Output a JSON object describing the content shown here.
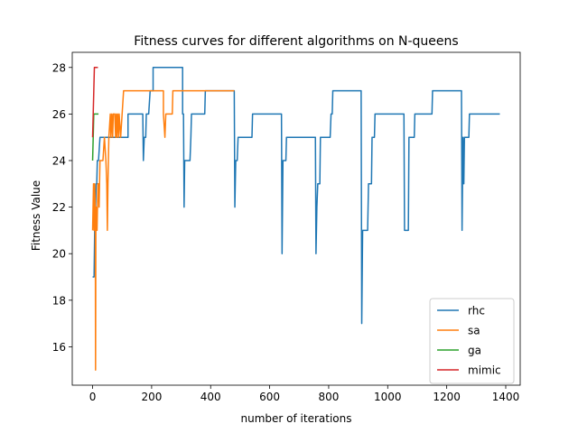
{
  "chart_data": {
    "type": "line",
    "title": "Fitness curves for different algorithms on N-queens",
    "xlabel": "number of iterations",
    "ylabel": "Fitness Value",
    "xlim": [
      -69,
      1449
    ],
    "ylim": [
      14.35,
      28.65
    ],
    "xticks": [
      0,
      200,
      400,
      600,
      800,
      1000,
      1200,
      1400
    ],
    "yticks": [
      16,
      18,
      20,
      22,
      24,
      26,
      28
    ],
    "grid": false,
    "legend": "lower-right",
    "series": [
      {
        "name": "rhc",
        "color": "#1f77b4",
        "points": [
          [
            0,
            19
          ],
          [
            5,
            19
          ],
          [
            8,
            22
          ],
          [
            10,
            22
          ],
          [
            12,
            23
          ],
          [
            14,
            23
          ],
          [
            16,
            24
          ],
          [
            20,
            24
          ],
          [
            25,
            25
          ],
          [
            120,
            25
          ],
          [
            120,
            26
          ],
          [
            170,
            26
          ],
          [
            172,
            24
          ],
          [
            175,
            25
          ],
          [
            180,
            25
          ],
          [
            182,
            26
          ],
          [
            190,
            26
          ],
          [
            195,
            27
          ],
          [
            205,
            27
          ],
          [
            205,
            28
          ],
          [
            305,
            28
          ],
          [
            305,
            26
          ],
          [
            308,
            26
          ],
          [
            310,
            22
          ],
          [
            312,
            24
          ],
          [
            330,
            24
          ],
          [
            333,
            25
          ],
          [
            335,
            26
          ],
          [
            350,
            26
          ],
          [
            380,
            26
          ],
          [
            382,
            27
          ],
          [
            480,
            27
          ],
          [
            482,
            22
          ],
          [
            485,
            24
          ],
          [
            490,
            24
          ],
          [
            493,
            25
          ],
          [
            540,
            25
          ],
          [
            542,
            26
          ],
          [
            640,
            26
          ],
          [
            642,
            20
          ],
          [
            645,
            24
          ],
          [
            655,
            24
          ],
          [
            657,
            25
          ],
          [
            755,
            25
          ],
          [
            757,
            20
          ],
          [
            760,
            22
          ],
          [
            763,
            23
          ],
          [
            770,
            23
          ],
          [
            772,
            25
          ],
          [
            805,
            25
          ],
          [
            808,
            26
          ],
          [
            812,
            26
          ],
          [
            814,
            27
          ],
          [
            910,
            27
          ],
          [
            912,
            17
          ],
          [
            915,
            21
          ],
          [
            932,
            21
          ],
          [
            935,
            23
          ],
          [
            945,
            23
          ],
          [
            947,
            25
          ],
          [
            955,
            25
          ],
          [
            957,
            26
          ],
          [
            1055,
            26
          ],
          [
            1057,
            21
          ],
          [
            1070,
            21
          ],
          [
            1072,
            25
          ],
          [
            1090,
            25
          ],
          [
            1092,
            26
          ],
          [
            1150,
            26
          ],
          [
            1152,
            27
          ],
          [
            1250,
            27
          ],
          [
            1252,
            21
          ],
          [
            1255,
            25
          ],
          [
            1258,
            23
          ],
          [
            1260,
            25
          ],
          [
            1275,
            25
          ],
          [
            1277,
            26
          ],
          [
            1380,
            26
          ]
        ]
      },
      {
        "name": "sa",
        "color": "#ff7f0e",
        "points": [
          [
            0,
            21
          ],
          [
            3,
            23
          ],
          [
            5,
            21
          ],
          [
            7,
            23
          ],
          [
            9,
            22
          ],
          [
            10,
            15
          ],
          [
            11,
            21
          ],
          [
            13,
            22
          ],
          [
            15,
            21
          ],
          [
            18,
            23
          ],
          [
            20,
            23
          ],
          [
            22,
            22
          ],
          [
            25,
            24
          ],
          [
            30,
            24
          ],
          [
            35,
            24
          ],
          [
            40,
            25
          ],
          [
            45,
            24
          ],
          [
            48,
            23
          ],
          [
            50,
            21
          ],
          [
            52,
            23
          ],
          [
            55,
            25
          ],
          [
            60,
            26
          ],
          [
            62,
            25
          ],
          [
            65,
            26
          ],
          [
            68,
            25
          ],
          [
            70,
            26
          ],
          [
            75,
            26
          ],
          [
            78,
            25
          ],
          [
            80,
            26
          ],
          [
            82,
            25
          ],
          [
            85,
            26
          ],
          [
            88,
            25
          ],
          [
            90,
            26
          ],
          [
            95,
            25
          ],
          [
            100,
            26
          ],
          [
            105,
            27
          ],
          [
            145,
            27
          ],
          [
            180,
            27
          ],
          [
            240,
            27
          ],
          [
            240,
            26
          ],
          [
            245,
            25
          ],
          [
            248,
            26
          ],
          [
            270,
            26
          ],
          [
            272,
            27
          ],
          [
            380,
            27
          ],
          [
            480,
            27
          ]
        ]
      },
      {
        "name": "ga",
        "color": "#2ca02c",
        "points": [
          [
            0,
            24
          ],
          [
            2,
            25
          ],
          [
            4,
            26
          ],
          [
            20,
            26
          ]
        ]
      },
      {
        "name": "mimic",
        "color": "#d62728",
        "points": [
          [
            0,
            25
          ],
          [
            2,
            26
          ],
          [
            4,
            27
          ],
          [
            6,
            28
          ],
          [
            18,
            28
          ]
        ]
      }
    ]
  }
}
